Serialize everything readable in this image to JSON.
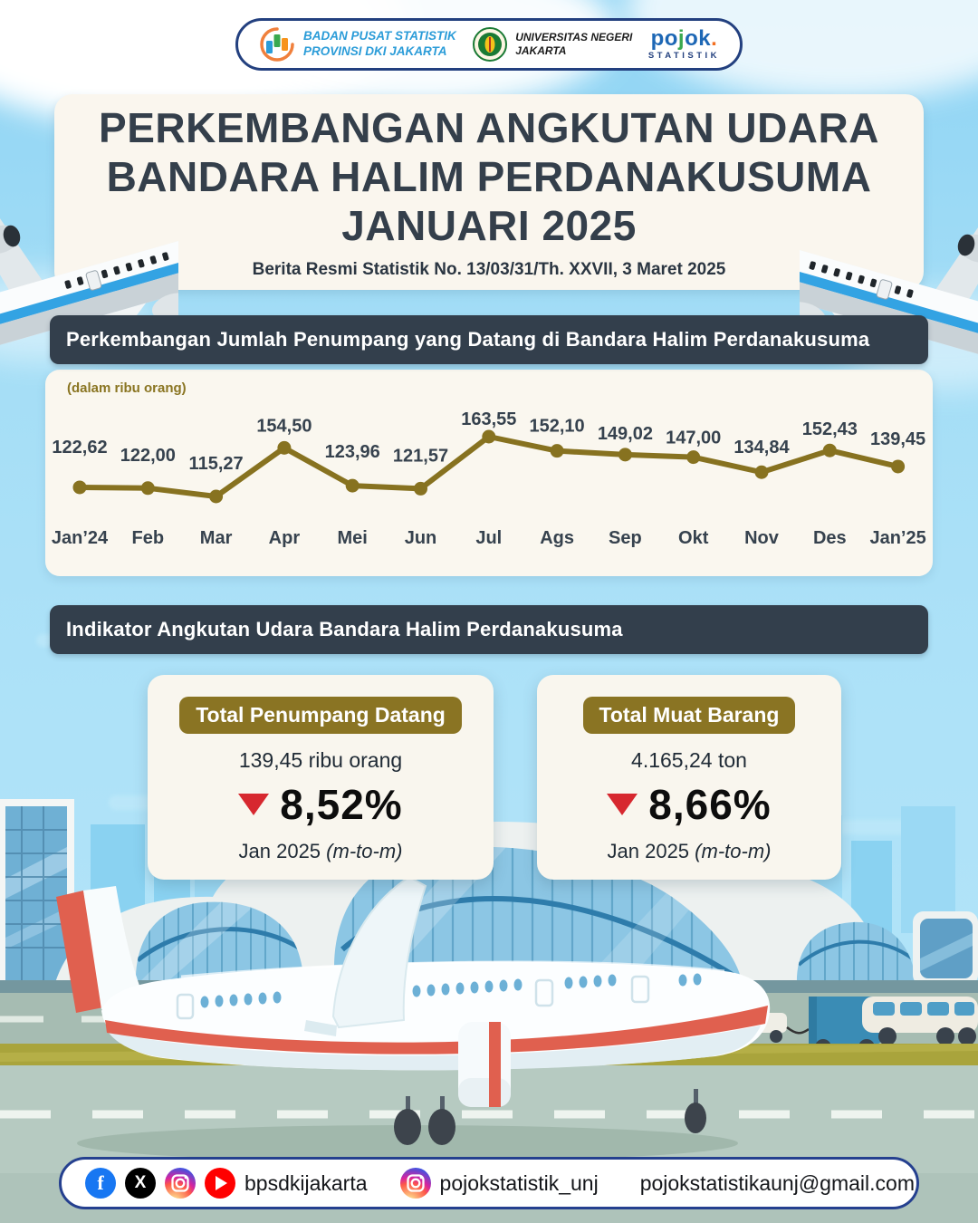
{
  "header": {
    "bps": {
      "line1": "BADAN PUSAT STATISTIK",
      "line2": "PROVINSI DKI JAKARTA"
    },
    "unj": {
      "line1": "UNIVERSITAS NEGERI",
      "line2": "JAKARTA"
    },
    "pojok": {
      "part1": "po",
      "part2": "j",
      "part3": "ok",
      "part4": ".",
      "line2": "STATISTIK"
    }
  },
  "title": {
    "line1": "PERKEMBANGAN ANGKUTAN UDARA",
    "line2": "BANDARA HALIM PERDANAKUSUMA",
    "line3": "JANUARI 2025",
    "subtitle": "Berita Resmi Statistik No. 13/03/31/Th. XXVII, 3 Maret 2025"
  },
  "sections": {
    "passengers": "Perkembangan Jumlah Penumpang yang Datang di Bandara Halim Perdanakusuma",
    "indicators": "Indikator Angkutan Udara Bandara Halim Perdanakusuma"
  },
  "chart_data": {
    "type": "line",
    "title": "Perkembangan Jumlah Penumpang yang Datang di Bandara Halim Perdanakusuma",
    "unit_label": "(dalam ribu orang)",
    "categories": [
      "Jan’24",
      "Feb",
      "Mar",
      "Apr",
      "Mei",
      "Jun",
      "Jul",
      "Ags",
      "Sep",
      "Okt",
      "Nov",
      "Des",
      "Jan’25"
    ],
    "values": [
      122.62,
      122.0,
      115.27,
      154.5,
      123.96,
      121.57,
      163.55,
      152.1,
      149.02,
      147.0,
      134.84,
      152.43,
      139.45
    ],
    "value_labels": [
      "122,62",
      "122,00",
      "115,27",
      "154,50",
      "123,96",
      "121,57",
      "163,55",
      "152,10",
      "149,02",
      "147,00",
      "134,84",
      "152,43",
      "139,45"
    ],
    "ylim": [
      110,
      170
    ],
    "grid": false,
    "legend": "none",
    "line_color": "#877220",
    "label_color": "#36424e"
  },
  "cards": [
    {
      "badge": "Total Penumpang Datang",
      "value": "139,45 ribu orang",
      "direction": "down",
      "percent": "8,52%",
      "period": "Jan 2025",
      "period_note": "(m-to-m)"
    },
    {
      "badge": "Total Muat Barang",
      "value": "4.165,24 ton",
      "direction": "down",
      "percent": "8,66%",
      "period": "Jan 2025",
      "period_note": "(m-to-m)"
    }
  ],
  "footer": {
    "handle_main": "bpsdkijakarta",
    "handle_ig": "pojokstatistik_unj",
    "email": "pojokstatistikaunj@gmail.com"
  },
  "colors": {
    "accent_olive": "#8a7423",
    "slate": "#333f4c",
    "down_red": "#d7282f",
    "sky": "#a5def6",
    "cream": "#faf6ee"
  }
}
